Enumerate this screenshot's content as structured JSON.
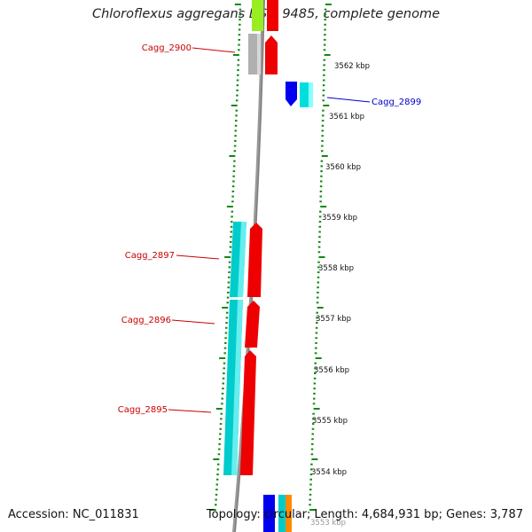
{
  "title": "Chloroflexus aggregans DSM 9485, complete genome",
  "footer": {
    "accession": "Accession: NC_011831",
    "topology": "Topology: circular; Length: 4,684,931 bp; Genes: 3,787"
  },
  "scale_labels": [
    "3562 kbp",
    "3561 kbp",
    "3560 kbp",
    "3559 kbp",
    "3558 kbp",
    "3557 kbp",
    "3556 kbp",
    "3555 kbp",
    "3554 kbp",
    "3553 kbp"
  ],
  "gene_labels": [
    {
      "name": "Cagg_2900",
      "color": "#cc0000"
    },
    {
      "name": "Cagg_2899",
      "color": "#0000cc"
    },
    {
      "name": "Cagg_2897",
      "color": "#cc0000"
    },
    {
      "name": "Cagg_2896",
      "color": "#cc0000"
    },
    {
      "name": "Cagg_2895",
      "color": "#cc0000"
    }
  ],
  "colors": {
    "forward_cds": "#ee0000",
    "reverse_cds": "#00cccc",
    "blue_cds": "#0000ee",
    "grey_cds": "#b0b0b0",
    "lime_cds": "#99ee22",
    "orange_cds": "#ff8800",
    "tick": "#118811",
    "axis": "#888888"
  }
}
